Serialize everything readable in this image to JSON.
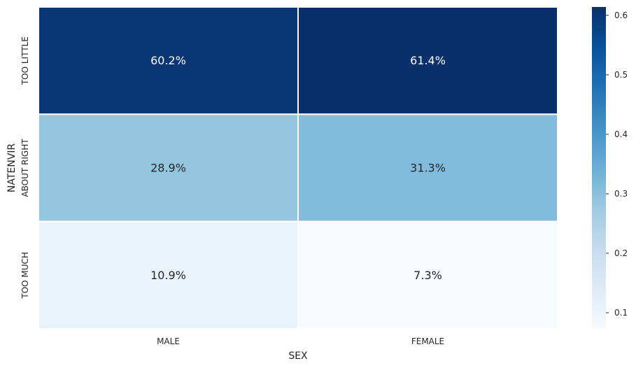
{
  "chart_data": {
    "type": "heatmap",
    "x_categories": [
      "MALE",
      "FEMALE"
    ],
    "y_categories": [
      "TOO LITTLE",
      "ABOUT RIGHT",
      "TOO MUCH"
    ],
    "values": [
      [
        0.602,
        0.614
      ],
      [
        0.289,
        0.313
      ],
      [
        0.109,
        0.073
      ]
    ],
    "annotations": [
      [
        "60.2%",
        "61.4%"
      ],
      [
        "28.9%",
        "31.3%"
      ],
      [
        "10.9%",
        "7.3%"
      ]
    ],
    "xlabel": "SEX",
    "ylabel": "NATENVIR",
    "colormap": "Blues",
    "vmin": 0.073,
    "vmax": 0.614,
    "colorbar_ticks": [
      0.1,
      0.2,
      0.3,
      0.4,
      0.5,
      0.6
    ],
    "colorbar_tick_labels": [
      "0.1",
      "0.2",
      "0.3",
      "0.4",
      "0.5",
      "0.6"
    ],
    "cell_border_color": "#ffffff"
  }
}
